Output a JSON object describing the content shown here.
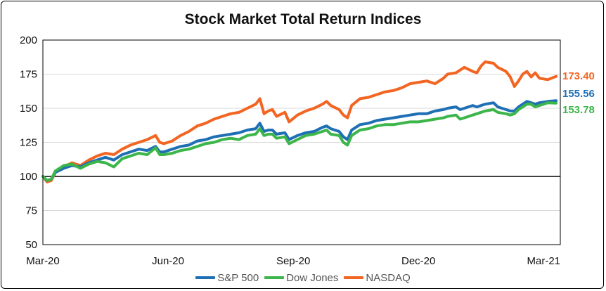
{
  "chart_data": {
    "type": "line",
    "title": "Stock Market Total Return Indices",
    "xlabel": "",
    "ylabel": "",
    "ylim": [
      50,
      200
    ],
    "yticks": [
      50,
      75,
      100,
      125,
      150,
      175,
      200
    ],
    "baseline": 100,
    "xlim": [
      0,
      12.4
    ],
    "xticks": [
      {
        "x": 0,
        "label": "Mar-20"
      },
      {
        "x": 3,
        "label": "Jun-20"
      },
      {
        "x": 6,
        "label": "Sep-20"
      },
      {
        "x": 9,
        "label": "Dec-20"
      },
      {
        "x": 12,
        "label": "Mar-21"
      }
    ],
    "legend_position": "bottom",
    "series": [
      {
        "name": "NASDAQ",
        "color": "#F26522",
        "end_label": "173.40",
        "points": [
          [
            0,
            100
          ],
          [
            0.1,
            96
          ],
          [
            0.2,
            97
          ],
          [
            0.3,
            103
          ],
          [
            0.5,
            107
          ],
          [
            0.7,
            110
          ],
          [
            0.9,
            108
          ],
          [
            1.1,
            112
          ],
          [
            1.3,
            115
          ],
          [
            1.5,
            117
          ],
          [
            1.7,
            116
          ],
          [
            1.9,
            120
          ],
          [
            2.1,
            123
          ],
          [
            2.3,
            125
          ],
          [
            2.5,
            127
          ],
          [
            2.7,
            130
          ],
          [
            2.8,
            125
          ],
          [
            2.9,
            124
          ],
          [
            3.1,
            126
          ],
          [
            3.3,
            130
          ],
          [
            3.5,
            133
          ],
          [
            3.7,
            137
          ],
          [
            3.9,
            139
          ],
          [
            4.1,
            142
          ],
          [
            4.3,
            144
          ],
          [
            4.5,
            146
          ],
          [
            4.7,
            147
          ],
          [
            4.9,
            150
          ],
          [
            5.1,
            153
          ],
          [
            5.2,
            157
          ],
          [
            5.3,
            146
          ],
          [
            5.4,
            148
          ],
          [
            5.5,
            149
          ],
          [
            5.6,
            144
          ],
          [
            5.8,
            147
          ],
          [
            5.9,
            140
          ],
          [
            6.1,
            145
          ],
          [
            6.3,
            148
          ],
          [
            6.5,
            150
          ],
          [
            6.7,
            153
          ],
          [
            6.8,
            155
          ],
          [
            6.9,
            152
          ],
          [
            7.1,
            149
          ],
          [
            7.2,
            145
          ],
          [
            7.3,
            143
          ],
          [
            7.4,
            152
          ],
          [
            7.6,
            157
          ],
          [
            7.8,
            158
          ],
          [
            8.0,
            160
          ],
          [
            8.2,
            162
          ],
          [
            8.4,
            163
          ],
          [
            8.6,
            165
          ],
          [
            8.8,
            168
          ],
          [
            9.0,
            169
          ],
          [
            9.2,
            170
          ],
          [
            9.4,
            168
          ],
          [
            9.6,
            172
          ],
          [
            9.7,
            175
          ],
          [
            9.9,
            176
          ],
          [
            10.0,
            178
          ],
          [
            10.1,
            180
          ],
          [
            10.3,
            177
          ],
          [
            10.4,
            176
          ],
          [
            10.5,
            181
          ],
          [
            10.6,
            184
          ],
          [
            10.8,
            183
          ],
          [
            10.9,
            180
          ],
          [
            11.1,
            177
          ],
          [
            11.2,
            173
          ],
          [
            11.3,
            166
          ],
          [
            11.4,
            170
          ],
          [
            11.5,
            175
          ],
          [
            11.6,
            177
          ],
          [
            11.7,
            173
          ],
          [
            11.8,
            176
          ],
          [
            11.9,
            172
          ],
          [
            12.1,
            171
          ],
          [
            12.3,
            173.4
          ]
        ]
      },
      {
        "name": "S&P 500",
        "color": "#1F6FB5",
        "end_label": "155.56",
        "points": [
          [
            0,
            100
          ],
          [
            0.1,
            97
          ],
          [
            0.2,
            98
          ],
          [
            0.3,
            103
          ],
          [
            0.5,
            106
          ],
          [
            0.7,
            108
          ],
          [
            0.9,
            107
          ],
          [
            1.1,
            110
          ],
          [
            1.3,
            112
          ],
          [
            1.5,
            114
          ],
          [
            1.7,
            112
          ],
          [
            1.9,
            116
          ],
          [
            2.1,
            118
          ],
          [
            2.3,
            120
          ],
          [
            2.5,
            119
          ],
          [
            2.7,
            122
          ],
          [
            2.8,
            118
          ],
          [
            2.9,
            118
          ],
          [
            3.1,
            120
          ],
          [
            3.3,
            122
          ],
          [
            3.5,
            123
          ],
          [
            3.7,
            126
          ],
          [
            3.9,
            127
          ],
          [
            4.1,
            129
          ],
          [
            4.3,
            130
          ],
          [
            4.5,
            131
          ],
          [
            4.7,
            132
          ],
          [
            4.9,
            134
          ],
          [
            5.1,
            135
          ],
          [
            5.2,
            139
          ],
          [
            5.3,
            133
          ],
          [
            5.4,
            134
          ],
          [
            5.5,
            134
          ],
          [
            5.6,
            131
          ],
          [
            5.8,
            132
          ],
          [
            5.9,
            127
          ],
          [
            6.1,
            130
          ],
          [
            6.3,
            132
          ],
          [
            6.5,
            133
          ],
          [
            6.7,
            136
          ],
          [
            6.8,
            137
          ],
          [
            6.9,
            135
          ],
          [
            7.1,
            133
          ],
          [
            7.2,
            129
          ],
          [
            7.3,
            127
          ],
          [
            7.4,
            134
          ],
          [
            7.6,
            138
          ],
          [
            7.8,
            139
          ],
          [
            8.0,
            141
          ],
          [
            8.2,
            142
          ],
          [
            8.4,
            143
          ],
          [
            8.6,
            144
          ],
          [
            8.8,
            145
          ],
          [
            9.0,
            146
          ],
          [
            9.2,
            146
          ],
          [
            9.4,
            148
          ],
          [
            9.6,
            149
          ],
          [
            9.7,
            150
          ],
          [
            9.9,
            151
          ],
          [
            10.0,
            149
          ],
          [
            10.1,
            150
          ],
          [
            10.3,
            152
          ],
          [
            10.4,
            151
          ],
          [
            10.5,
            152
          ],
          [
            10.6,
            153
          ],
          [
            10.8,
            154
          ],
          [
            10.9,
            151
          ],
          [
            11.1,
            149
          ],
          [
            11.2,
            148
          ],
          [
            11.3,
            148
          ],
          [
            11.4,
            151
          ],
          [
            11.5,
            153
          ],
          [
            11.6,
            155
          ],
          [
            11.7,
            154
          ],
          [
            11.8,
            153
          ],
          [
            11.9,
            154
          ],
          [
            12.1,
            155
          ],
          [
            12.3,
            155.56
          ]
        ]
      },
      {
        "name": "Dow Jones",
        "color": "#3CB54A",
        "end_label": "153.78",
        "points": [
          [
            0,
            100
          ],
          [
            0.1,
            97
          ],
          [
            0.2,
            98
          ],
          [
            0.3,
            104
          ],
          [
            0.5,
            108
          ],
          [
            0.7,
            109
          ],
          [
            0.9,
            106
          ],
          [
            1.1,
            109
          ],
          [
            1.3,
            111
          ],
          [
            1.5,
            110
          ],
          [
            1.7,
            107
          ],
          [
            1.9,
            113
          ],
          [
            2.1,
            115
          ],
          [
            2.3,
            117
          ],
          [
            2.5,
            116
          ],
          [
            2.7,
            121
          ],
          [
            2.8,
            116
          ],
          [
            2.9,
            116
          ],
          [
            3.1,
            117
          ],
          [
            3.3,
            119
          ],
          [
            3.5,
            120
          ],
          [
            3.7,
            122
          ],
          [
            3.9,
            124
          ],
          [
            4.1,
            125
          ],
          [
            4.3,
            127
          ],
          [
            4.5,
            128
          ],
          [
            4.7,
            127
          ],
          [
            4.9,
            130
          ],
          [
            5.1,
            131
          ],
          [
            5.2,
            135
          ],
          [
            5.3,
            130
          ],
          [
            5.4,
            131
          ],
          [
            5.5,
            131
          ],
          [
            5.6,
            128
          ],
          [
            5.8,
            129
          ],
          [
            5.9,
            124
          ],
          [
            6.1,
            127
          ],
          [
            6.3,
            130
          ],
          [
            6.5,
            131
          ],
          [
            6.7,
            133
          ],
          [
            6.8,
            134
          ],
          [
            6.9,
            131
          ],
          [
            7.1,
            130
          ],
          [
            7.2,
            125
          ],
          [
            7.3,
            123
          ],
          [
            7.4,
            130
          ],
          [
            7.6,
            134
          ],
          [
            7.8,
            135
          ],
          [
            8.0,
            137
          ],
          [
            8.2,
            138
          ],
          [
            8.4,
            138
          ],
          [
            8.6,
            139
          ],
          [
            8.8,
            140
          ],
          [
            9.0,
            140
          ],
          [
            9.2,
            141
          ],
          [
            9.4,
            142
          ],
          [
            9.6,
            143
          ],
          [
            9.7,
            144
          ],
          [
            9.9,
            145
          ],
          [
            10.0,
            142
          ],
          [
            10.1,
            143
          ],
          [
            10.3,
            145
          ],
          [
            10.4,
            146
          ],
          [
            10.5,
            147
          ],
          [
            10.6,
            148
          ],
          [
            10.8,
            149
          ],
          [
            10.9,
            147
          ],
          [
            11.1,
            146
          ],
          [
            11.2,
            145
          ],
          [
            11.3,
            146
          ],
          [
            11.4,
            149
          ],
          [
            11.5,
            151
          ],
          [
            11.6,
            153
          ],
          [
            11.7,
            153
          ],
          [
            11.8,
            151
          ],
          [
            11.9,
            152
          ],
          [
            12.1,
            154
          ],
          [
            12.3,
            153.78
          ]
        ]
      }
    ],
    "legend_order": [
      "S&P 500",
      "Dow Jones",
      "NASDAQ"
    ]
  }
}
